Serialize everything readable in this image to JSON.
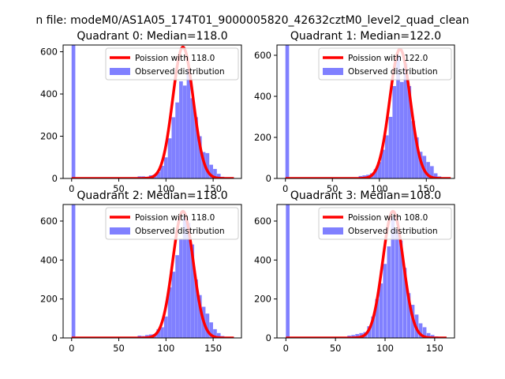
{
  "figure": {
    "suptitle": "n file: modeM0/AS1A05_174T01_9000005820_42632cztM0_level2_quad_clean"
  },
  "colors": {
    "fit_line": "#ff0000",
    "observed_bar": "#8080ff",
    "axes": "#000000",
    "legend_border": "#cccccc"
  },
  "chart_data": [
    {
      "type": "bar",
      "title": "Quadrant 0: Median=118.0",
      "xlabel": "",
      "ylabel": "",
      "xlim": [
        -9,
        180
      ],
      "ylim": [
        0,
        632
      ],
      "xticks": [
        0,
        50,
        100,
        150
      ],
      "yticks": [
        0,
        200,
        400,
        600
      ],
      "grid": false,
      "legend_position": "top-right",
      "bin_width": 3.9,
      "series": [
        {
          "name": "Poission with 118.0",
          "kind": "line",
          "mean": 118.0,
          "x_range": [
            0,
            172
          ],
          "peak": 622
        },
        {
          "name": "Observed distribution",
          "kind": "histogram",
          "x": [
            0,
            70,
            74,
            78,
            82,
            86,
            90,
            94,
            98,
            102,
            106,
            110,
            114,
            118,
            122,
            126,
            130,
            134,
            138,
            142,
            146,
            150,
            154,
            158
          ],
          "values": [
            632,
            10,
            10,
            8,
            15,
            18,
            30,
            60,
            100,
            190,
            290,
            360,
            460,
            440,
            520,
            380,
            290,
            200,
            125,
            120,
            65,
            45,
            22,
            8
          ]
        }
      ]
    },
    {
      "type": "bar",
      "title": "Quadrant 1: Median=122.0",
      "xlabel": "",
      "ylabel": "",
      "xlim": [
        -9,
        180
      ],
      "ylim": [
        0,
        650
      ],
      "xticks": [
        0,
        50,
        100,
        150
      ],
      "yticks": [
        0,
        200,
        400,
        600
      ],
      "grid": false,
      "legend_position": "top-right",
      "bin_width": 3.9,
      "series": [
        {
          "name": "Poission with 122.0",
          "kind": "line",
          "mean": 122.0,
          "x_range": [
            0,
            176
          ],
          "peak": 630
        },
        {
          "name": "Observed distribution",
          "kind": "histogram",
          "x": [
            0,
            78,
            82,
            86,
            90,
            94,
            98,
            102,
            106,
            110,
            114,
            118,
            122,
            126,
            130,
            134,
            138,
            142,
            146,
            150,
            154,
            158,
            162
          ],
          "values": [
            650,
            12,
            15,
            18,
            25,
            45,
            80,
            140,
            210,
            300,
            450,
            600,
            470,
            560,
            450,
            280,
            200,
            130,
            110,
            80,
            60,
            25,
            10
          ]
        }
      ]
    },
    {
      "type": "bar",
      "title": "Quadrant 2: Median=118.0",
      "xlabel": "",
      "ylabel": "",
      "xlim": [
        -9,
        180
      ],
      "ylim": [
        0,
        685
      ],
      "xticks": [
        0,
        50,
        100,
        150
      ],
      "yticks": [
        0,
        200,
        400,
        600
      ],
      "grid": false,
      "legend_position": "top-right",
      "bin_width": 3.9,
      "series": [
        {
          "name": "Poission with 118.0",
          "kind": "line",
          "mean": 118.0,
          "x_range": [
            0,
            172
          ],
          "peak": 650
        },
        {
          "name": "Observed distribution",
          "kind": "histogram",
          "x": [
            0,
            70,
            74,
            78,
            82,
            86,
            90,
            94,
            98,
            102,
            106,
            110,
            114,
            118,
            122,
            126,
            130,
            134,
            138,
            142,
            146,
            150,
            154,
            158
          ],
          "values": [
            685,
            12,
            10,
            15,
            18,
            20,
            45,
            55,
            110,
            260,
            340,
            425,
            510,
            620,
            590,
            480,
            300,
            220,
            160,
            125,
            80,
            45,
            25,
            10
          ]
        }
      ]
    },
    {
      "type": "bar",
      "title": "Quadrant 3: Median=108.0",
      "xlabel": "",
      "ylabel": "",
      "xlim": [
        -9,
        170
      ],
      "ylim": [
        0,
        685
      ],
      "xticks": [
        0,
        50,
        100,
        150
      ],
      "yticks": [
        0,
        200,
        400,
        600
      ],
      "grid": false,
      "legend_position": "top-right",
      "bin_width": 3.7,
      "series": [
        {
          "name": "Poission with 108.0",
          "kind": "line",
          "mean": 108.0,
          "x_range": [
            0,
            162
          ],
          "peak": 650
        },
        {
          "name": "Observed distribution",
          "kind": "histogram",
          "x": [
            0,
            62,
            66,
            70,
            74,
            78,
            82,
            86,
            90,
            94,
            98,
            102,
            106,
            110,
            114,
            118,
            122,
            126,
            130,
            134,
            138,
            142,
            146,
            150
          ],
          "values": [
            685,
            12,
            15,
            20,
            25,
            30,
            60,
            110,
            200,
            280,
            380,
            470,
            620,
            560,
            500,
            360,
            230,
            170,
            120,
            75,
            55,
            25,
            15,
            8
          ]
        }
      ]
    }
  ]
}
